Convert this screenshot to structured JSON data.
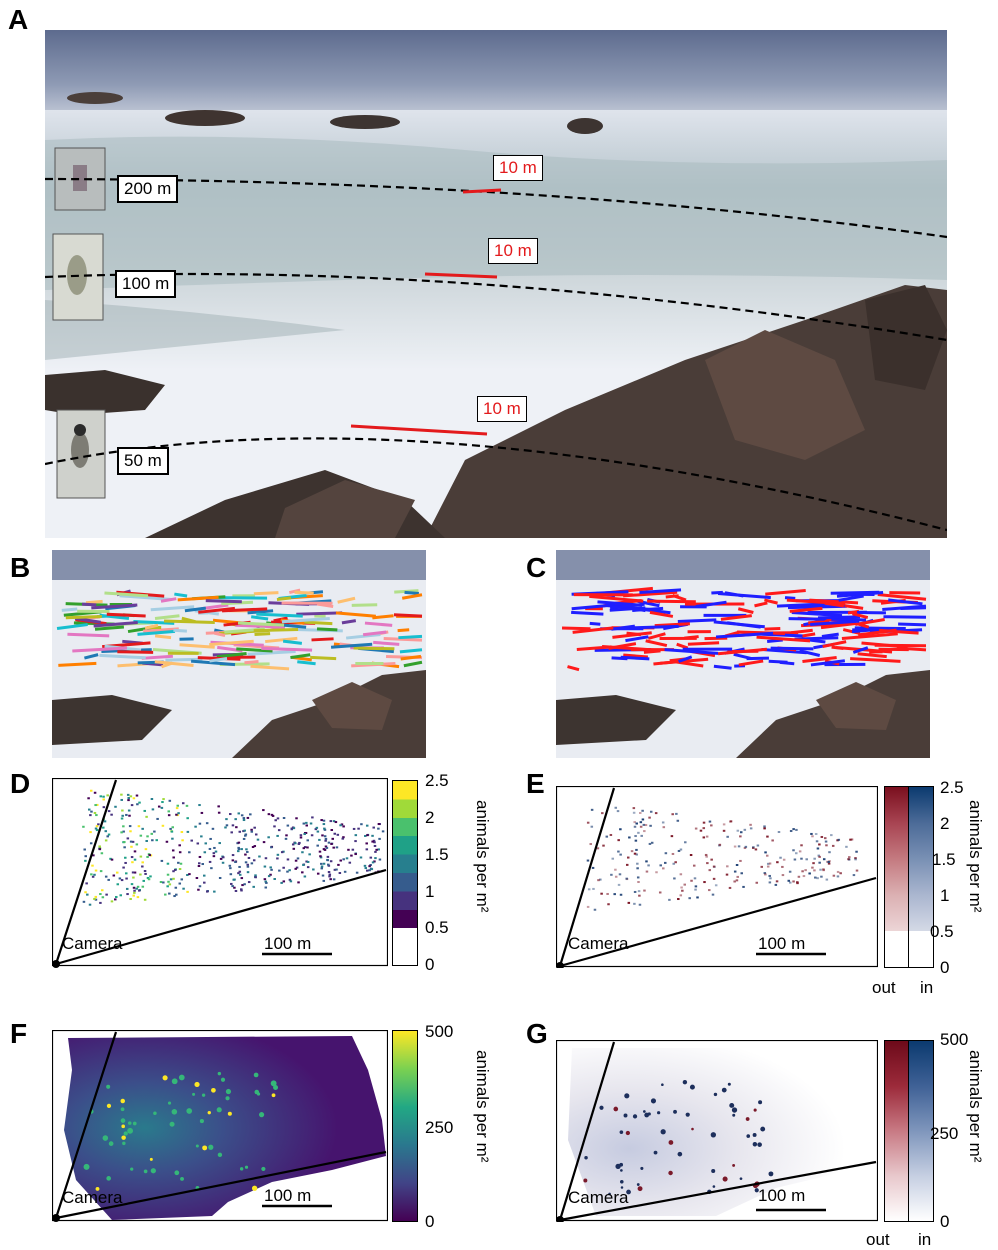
{
  "panels": {
    "A": {
      "letter": "A",
      "distance_labels": [
        "200 m",
        "100 m",
        "50 m"
      ],
      "scale_labels": [
        "10 m",
        "10 m",
        "10 m"
      ],
      "colors": {
        "scale_bar": "#e31a1c",
        "guide_line": "#000000"
      }
    },
    "B": {
      "letter": "B"
    },
    "C": {
      "letter": "C",
      "colors": {
        "in": "#1f1fff",
        "out": "#ff1a1a"
      }
    },
    "D": {
      "letter": "D",
      "camera_label": "Camera",
      "scalebar_label": "100 m",
      "colorbar": {
        "label": "animals per m²",
        "ticks": [
          "2.5",
          "2",
          "1.5",
          "1",
          "0.5",
          "0"
        ],
        "colors": [
          "#ffffff",
          "#440154",
          "#46327e",
          "#365c8d",
          "#277f8e",
          "#1fa187",
          "#4ac16d",
          "#a0da39",
          "#fde725"
        ]
      }
    },
    "E": {
      "letter": "E",
      "camera_label": "Camera",
      "scalebar_label": "100 m",
      "colorbar": {
        "label": "animals per m²",
        "ticks": [
          "2.5",
          "2",
          "1.5",
          "1",
          "0.5",
          "0"
        ],
        "bottom_labels": [
          "out",
          "in"
        ]
      }
    },
    "F": {
      "letter": "F",
      "camera_label": "Camera",
      "scalebar_label": "100 m",
      "colorbar": {
        "label": "animals per m²",
        "ticks": [
          "500",
          "250",
          "0"
        ]
      }
    },
    "G": {
      "letter": "G",
      "camera_label": "Camera",
      "scalebar_label": "100 m",
      "colorbar": {
        "label": "animals per m²",
        "ticks": [
          "500",
          "250",
          "0"
        ],
        "bottom_labels": [
          "out",
          "in"
        ]
      }
    }
  }
}
